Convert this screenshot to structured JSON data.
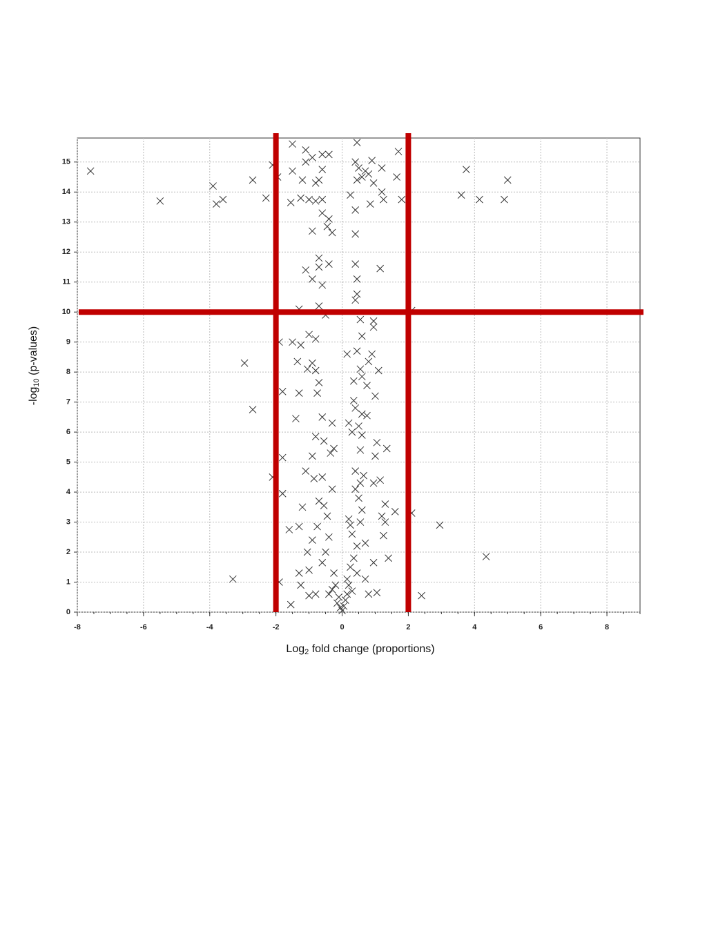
{
  "chart_data": {
    "type": "scatter",
    "xlabel": [
      "Log",
      "2",
      " fold change (proportions)"
    ],
    "ylabel": [
      "-log",
      "10",
      " (p-values)"
    ],
    "xlim": [
      -8,
      9
    ],
    "ylim": [
      0,
      15.8
    ],
    "xticks": [
      -8,
      -6,
      -4,
      -2,
      0,
      2,
      4,
      6,
      8
    ],
    "yticks": [
      0,
      1,
      2,
      3,
      4,
      5,
      6,
      7,
      8,
      9,
      10,
      11,
      12,
      13,
      14,
      15
    ],
    "grid": true,
    "marker": "x",
    "color": "#333333",
    "thresholds": {
      "x": [
        -2,
        2
      ],
      "y": [
        10
      ],
      "color": "#c00000"
    },
    "x": [
      -7.6,
      -5.5,
      -3.9,
      -3.8,
      -3.6,
      -2.7,
      -2.3,
      -2.95,
      -2.7,
      -3.3,
      3.75,
      3.6,
      4.15,
      4.9,
      5.0,
      2.95,
      4.35,
      2.4,
      2.1,
      1.7,
      1.65,
      1.8,
      -1.5,
      -1.1,
      0.45,
      -2.1,
      -1.95,
      -1.5,
      -1.55,
      -1.25,
      -1.1,
      -0.9,
      -0.6,
      -0.4,
      -0.6,
      -1.2,
      -0.8,
      -0.7,
      -1.0,
      -0.8,
      -0.6,
      -0.6,
      -0.4,
      -0.3,
      -0.45,
      -0.9,
      0.4,
      0.5,
      0.45,
      0.6,
      0.7,
      0.9,
      0.8,
      0.95,
      1.2,
      1.2,
      0.25,
      0.4,
      0.85,
      1.25,
      0.4,
      -0.7,
      -0.7,
      -1.1,
      -0.9,
      -0.4,
      -0.6,
      0.4,
      0.45,
      1.15,
      0.45,
      0.4,
      -1.3,
      -0.7,
      -0.5,
      2.1,
      0.55,
      0.95,
      0.95,
      0.6,
      -1.0,
      -0.8,
      -1.5,
      -1.25,
      -1.9,
      0.15,
      0.45,
      0.9,
      0.8,
      -1.35,
      -0.9,
      -1.05,
      -0.8,
      0.55,
      1.1,
      0.6,
      -0.7,
      -0.75,
      -1.3,
      0.35,
      0.75,
      1.0,
      -1.8,
      0.35,
      0.4,
      0.6,
      0.2,
      0.75,
      -0.6,
      -1.4,
      -0.3,
      -0.8,
      -0.55,
      -0.25,
      0.3,
      0.6,
      1.05,
      1.35,
      0.55,
      -0.9,
      -1.8,
      -0.35,
      1.0,
      -1.1,
      -0.6,
      -0.85,
      0.4,
      0.55,
      0.95,
      1.15,
      -1.8,
      -2.1,
      -0.3,
      0.5,
      -0.7,
      -0.55,
      1.3,
      1.6,
      1.2,
      -1.2,
      -1.6,
      -1.3,
      -0.75,
      0.2,
      0.6,
      1.3,
      1.25,
      -0.4,
      -0.9,
      -1.05,
      0.3,
      0.45,
      0.7,
      -0.5,
      1.4,
      0.95,
      -0.6,
      -1.0,
      -1.3,
      -0.25,
      0.25,
      0.45,
      0.7,
      0.15,
      -0.2,
      -1.25,
      -0.8,
      -1.0,
      -1.55,
      0.8,
      1.05,
      -0.4,
      0.3,
      -0.1,
      0.1,
      0.05,
      -0.05,
      0.0,
      0.15,
      -0.15,
      0.2,
      -0.3,
      0.35,
      0.25,
      0.4,
      -1.9,
      0.55,
      -0.45,
      0.65,
      0.5
    ],
    "values": [
      14.7,
      13.7,
      14.2,
      13.6,
      13.75,
      14.4,
      13.8,
      8.3,
      6.75,
      1.1,
      14.75,
      13.9,
      13.75,
      13.75,
      14.4,
      2.9,
      1.85,
      0.55,
      3.3,
      15.35,
      14.5,
      13.75,
      15.6,
      15.4,
      15.65,
      14.9,
      14.5,
      14.7,
      13.65,
      13.8,
      15.0,
      15.15,
      15.25,
      15.25,
      14.75,
      14.4,
      14.3,
      14.4,
      13.75,
      13.7,
      13.75,
      13.3,
      13.1,
      12.65,
      12.85,
      12.7,
      15.0,
      14.8,
      14.4,
      14.5,
      14.7,
      15.05,
      14.6,
      14.3,
      14.8,
      14.0,
      13.9,
      13.4,
      13.6,
      13.75,
      12.6,
      11.8,
      11.5,
      11.4,
      11.1,
      11.6,
      10.9,
      11.6,
      11.1,
      11.45,
      10.6,
      10.4,
      10.1,
      10.2,
      9.9,
      10.05,
      9.75,
      9.7,
      9.5,
      9.2,
      9.25,
      9.1,
      9.0,
      8.9,
      9.0,
      8.6,
      8.7,
      8.6,
      8.35,
      8.35,
      8.3,
      8.1,
      8.05,
      8.1,
      8.05,
      7.85,
      7.65,
      7.3,
      7.3,
      7.7,
      7.55,
      7.2,
      7.35,
      7.05,
      6.8,
      6.6,
      6.3,
      6.55,
      6.5,
      6.45,
      6.3,
      5.85,
      5.7,
      5.45,
      6.0,
      5.9,
      5.65,
      5.45,
      5.4,
      5.2,
      5.15,
      5.3,
      5.2,
      4.7,
      4.5,
      4.45,
      4.7,
      4.3,
      4.3,
      4.4,
      3.95,
      4.5,
      4.1,
      3.8,
      3.7,
      3.55,
      3.6,
      3.35,
      3.2,
      3.5,
      2.75,
      2.85,
      2.85,
      3.1,
      3.4,
      3.0,
      2.55,
      2.5,
      2.4,
      2.0,
      2.6,
      2.2,
      2.3,
      2.0,
      1.8,
      1.65,
      1.65,
      1.4,
      1.3,
      1.3,
      1.5,
      1.3,
      1.1,
      1.1,
      0.9,
      0.9,
      0.6,
      0.55,
      0.25,
      0.6,
      0.65,
      0.6,
      0.7,
      0.5,
      0.4,
      0.2,
      0.15,
      0.05,
      0.6,
      0.3,
      0.9,
      0.75,
      1.8,
      2.9,
      4.1,
      1.0,
      3.0,
      3.2,
      4.55,
      6.2
    ]
  }
}
